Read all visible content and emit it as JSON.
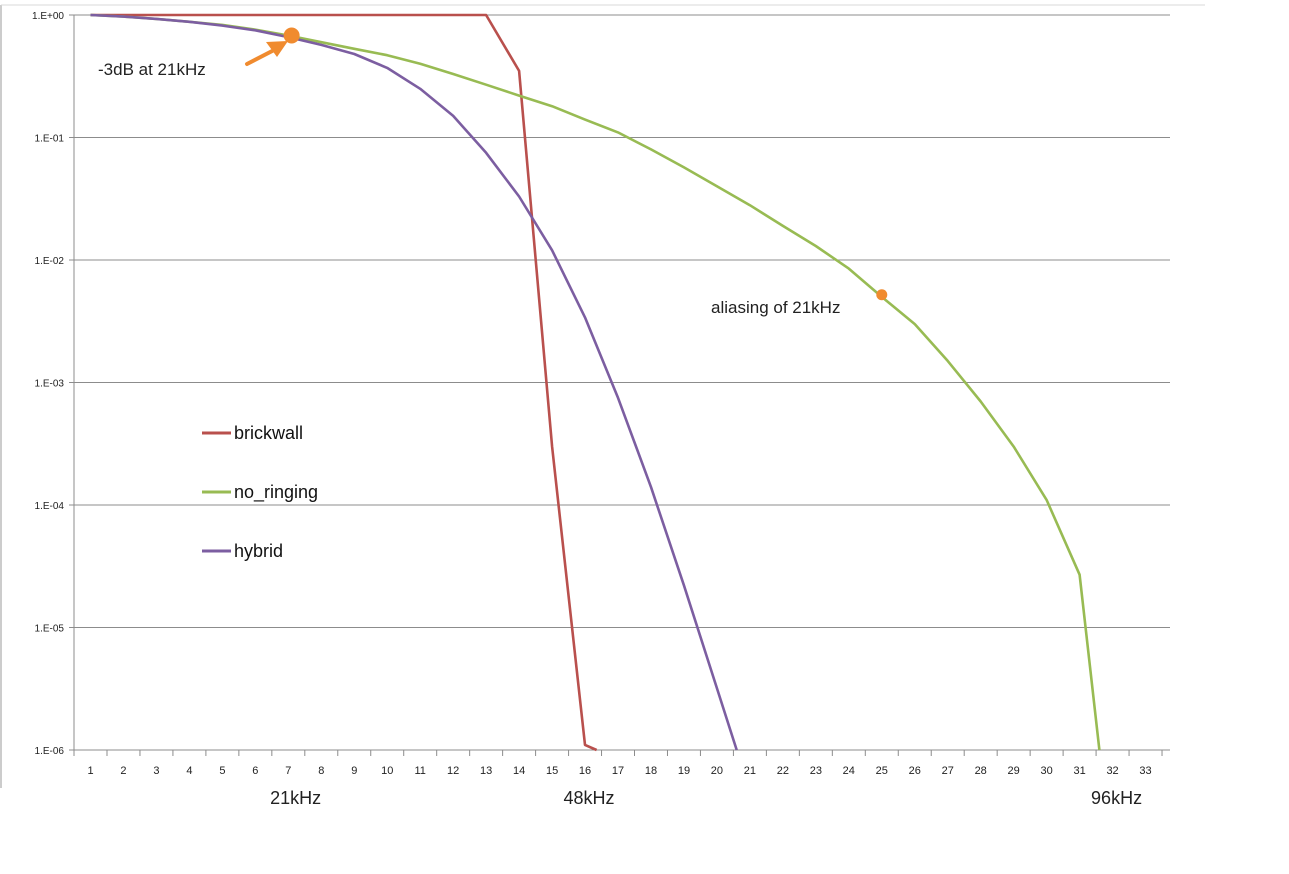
{
  "chart_data": {
    "type": "line",
    "title": "",
    "xlabel": "",
    "ylabel": "",
    "y_scale": "log",
    "ylim": [
      1e-06,
      1
    ],
    "xlim": [
      0.5,
      33.5
    ],
    "grid": "horizontal",
    "x_ticks": [
      "1",
      "2",
      "3",
      "4",
      "5",
      "6",
      "7",
      "8",
      "9",
      "10",
      "11",
      "12",
      "13",
      "14",
      "15",
      "16",
      "17",
      "18",
      "19",
      "20",
      "21",
      "22",
      "23",
      "24",
      "25",
      "26",
      "27",
      "28",
      "29",
      "30",
      "31",
      "32",
      "33"
    ],
    "y_ticks": [
      {
        "value": 1,
        "label": "1.E+00"
      },
      {
        "value": 0.1,
        "label": "1.E-01"
      },
      {
        "value": 0.01,
        "label": "1.E-02"
      },
      {
        "value": 0.001,
        "label": "1.E-03"
      },
      {
        "value": 0.0001,
        "label": "1.E-04"
      },
      {
        "value": 1e-05,
        "label": "1.E-05"
      },
      {
        "value": 1e-06,
        "label": "1.E-06"
      }
    ],
    "series": [
      {
        "name": "brickwall",
        "color": "#b9504d",
        "points": [
          [
            1,
            1
          ],
          [
            13,
            1
          ],
          [
            14,
            0.35
          ],
          [
            15,
            0.0003
          ],
          [
            16,
            1.1e-06
          ],
          [
            16.35,
            1e-06
          ]
        ]
      },
      {
        "name": "no_ringing",
        "color": "#98bb53",
        "points": [
          [
            1,
            1
          ],
          [
            2,
            0.97
          ],
          [
            3,
            0.93
          ],
          [
            4,
            0.88
          ],
          [
            5,
            0.83
          ],
          [
            6,
            0.76
          ],
          [
            7,
            0.68
          ],
          [
            8,
            0.6
          ],
          [
            9,
            0.53
          ],
          [
            10,
            0.47
          ],
          [
            11,
            0.4
          ],
          [
            12,
            0.33
          ],
          [
            13,
            0.27
          ],
          [
            14,
            0.22
          ],
          [
            15,
            0.18
          ],
          [
            16,
            0.14
          ],
          [
            17,
            0.11
          ],
          [
            18,
            0.08
          ],
          [
            19,
            0.057
          ],
          [
            20,
            0.04
          ],
          [
            21,
            0.028
          ],
          [
            22,
            0.019
          ],
          [
            23,
            0.013
          ],
          [
            24,
            0.0085
          ],
          [
            25,
            0.005
          ],
          [
            26,
            0.003
          ],
          [
            27,
            0.0015
          ],
          [
            28,
            0.0007
          ],
          [
            29,
            0.0003
          ],
          [
            30,
            0.00011
          ],
          [
            31,
            2.7e-05
          ],
          [
            31.6,
            1e-06
          ]
        ]
      },
      {
        "name": "hybrid",
        "color": "#7c5ea1",
        "points": [
          [
            1,
            1
          ],
          [
            2,
            0.97
          ],
          [
            3,
            0.93
          ],
          [
            4,
            0.88
          ],
          [
            5,
            0.82
          ],
          [
            6,
            0.75
          ],
          [
            7,
            0.66
          ],
          [
            8,
            0.57
          ],
          [
            9,
            0.48
          ],
          [
            10,
            0.37
          ],
          [
            11,
            0.25
          ],
          [
            12,
            0.15
          ],
          [
            13,
            0.075
          ],
          [
            14,
            0.033
          ],
          [
            15,
            0.012
          ],
          [
            16,
            0.0034
          ],
          [
            17,
            0.00075
          ],
          [
            18,
            0.00014
          ],
          [
            19,
            2.2e-05
          ],
          [
            20,
            3.2e-06
          ],
          [
            20.6,
            1e-06
          ]
        ]
      }
    ],
    "markers": [
      {
        "x": 7.1,
        "y": 0.68,
        "color": "#f08b2f",
        "size": "large"
      },
      {
        "x": 25.0,
        "y": 0.0052,
        "color": "#f08b2f",
        "size": "small"
      }
    ],
    "annotations": [
      {
        "id": "minus3db",
        "text": "-3dB at 21kHz"
      },
      {
        "id": "aliasing",
        "text": "aliasing of 21kHz"
      }
    ],
    "frequency_labels": [
      {
        "text": "21kHz",
        "x": 7.1
      },
      {
        "text": "48kHz",
        "x": 16
      },
      {
        "text": "96kHz",
        "x": 32
      }
    ],
    "legend_placement": "inside-left",
    "arrow_color": "#f08b2f"
  }
}
